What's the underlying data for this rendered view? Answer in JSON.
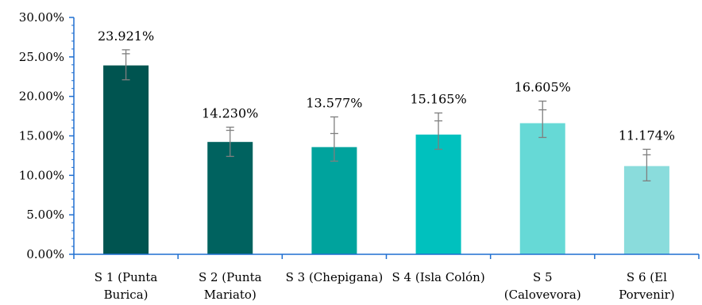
{
  "chart_data": {
    "type": "bar",
    "categories": [
      [
        "S 1 (Punta",
        "Burica)"
      ],
      [
        "S 2 (Punta",
        "Mariato)"
      ],
      [
        "S 3 (Chepigana)"
      ],
      [
        "S 4 (Isla Colón)"
      ],
      [
        "S 5",
        "(Calovevora)"
      ],
      [
        "S 6 (El",
        "Porvenir)"
      ]
    ],
    "values": [
      23.921,
      14.23,
      13.577,
      15.165,
      16.605,
      11.174
    ],
    "data_labels": [
      "23.921%",
      "14.230%",
      "13.577%",
      "15.165%",
      "16.605%",
      "11.174%"
    ],
    "error_bars": [
      {
        "low": 22.1,
        "high": 25.9,
        "mid": 25.4
      },
      {
        "low": 12.4,
        "high": 16.1,
        "mid": 15.7
      },
      {
        "low": 11.8,
        "high": 17.4,
        "mid": 15.3
      },
      {
        "low": 13.3,
        "high": 17.9,
        "mid": 16.9
      },
      {
        "low": 14.8,
        "high": 19.4,
        "mid": 18.3
      },
      {
        "low": 9.3,
        "high": 13.3,
        "mid": 12.6
      }
    ],
    "colors": [
      "#005450",
      "#00625f",
      "#00a39d",
      "#00c1be",
      "#66d9d6",
      "#8adcdc"
    ],
    "ylim": [
      0,
      30
    ],
    "y_ticks": [
      0,
      5,
      10,
      15,
      20,
      25,
      30
    ],
    "y_tick_labels": [
      "0.00%",
      "5.00%",
      "10.00%",
      "15.00%",
      "20.00%",
      "25.00%",
      "30.00%"
    ],
    "axis_color": "#1f6fd1",
    "error_color": "#7f7f7f",
    "grid": false,
    "title": "",
    "xlabel": "",
    "ylabel": ""
  }
}
